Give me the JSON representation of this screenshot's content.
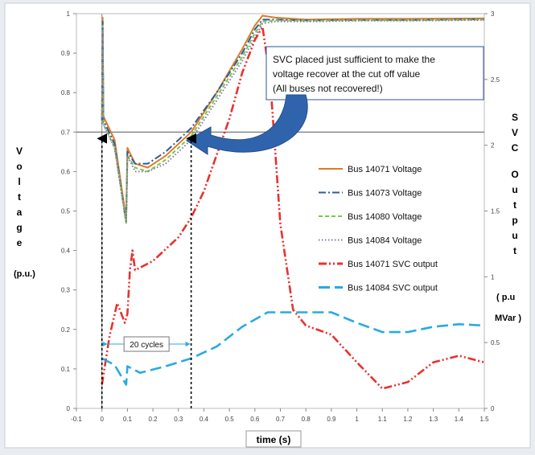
{
  "chart_data": {
    "type": "line",
    "xlabel": "time (s)",
    "ylabel_left": "Voltage",
    "ylabel_left_unit": "(p.u.)",
    "ylabel_right": "SVC Output",
    "ylabel_right_unit_1": "( p.u",
    "ylabel_right_unit_2": "MVar )",
    "xlim": [
      -0.1,
      1.5
    ],
    "ylim_left": [
      0,
      1
    ],
    "ylim_right": [
      0,
      3
    ],
    "x_ticks": [
      "-0.1",
      "0",
      "0.1",
      "0.2",
      "0.3",
      "0.4",
      "0.5",
      "0.6",
      "0.7",
      "0.8",
      "0.9",
      "1",
      "1.1",
      "1.2",
      "1.3",
      "1.4",
      "1.5"
    ],
    "y_ticks_left": [
      "0",
      "0.1",
      "0.2",
      "0.3",
      "0.4",
      "0.5",
      "0.6",
      "0.7",
      "0.8",
      "0.9",
      "1"
    ],
    "y_ticks_right": [
      "0",
      "0.5",
      "1",
      "1.5",
      "2",
      "2.5",
      "3"
    ],
    "reference_line_y": 0.7,
    "annotation_text": "SVC placed just sufficient to make the voltage recover at the cut off value (All buses not recovered!)",
    "interval_label": "20 cycles",
    "interval_x": [
      0,
      0.35
    ],
    "series": [
      {
        "name": "Bus 14071 Voltage",
        "axis": "left",
        "color": "#e07b25",
        "style": "solid",
        "points": [
          [
            0,
            0.73
          ],
          [
            0.003,
            0.99
          ],
          [
            0.006,
            0.74
          ],
          [
            0.05,
            0.68
          ],
          [
            0.095,
            0.48
          ],
          [
            0.1,
            0.66
          ],
          [
            0.13,
            0.62
          ],
          [
            0.18,
            0.61
          ],
          [
            0.25,
            0.64
          ],
          [
            0.35,
            0.7
          ],
          [
            0.45,
            0.8
          ],
          [
            0.55,
            0.91
          ],
          [
            0.6,
            0.97
          ],
          [
            0.63,
            0.995
          ],
          [
            0.68,
            0.99
          ],
          [
            0.8,
            0.985
          ],
          [
            1.0,
            0.987
          ],
          [
            1.2,
            0.987
          ],
          [
            1.5,
            0.988
          ]
        ]
      },
      {
        "name": "Bus 14073 Voltage",
        "axis": "left",
        "color": "#2f5aa0",
        "style": "dashdot",
        "points": [
          [
            0,
            0.73
          ],
          [
            0.003,
            0.98
          ],
          [
            0.006,
            0.73
          ],
          [
            0.05,
            0.67
          ],
          [
            0.095,
            0.47
          ],
          [
            0.1,
            0.65
          ],
          [
            0.13,
            0.62
          ],
          [
            0.18,
            0.62
          ],
          [
            0.25,
            0.65
          ],
          [
            0.35,
            0.71
          ],
          [
            0.45,
            0.8
          ],
          [
            0.55,
            0.9
          ],
          [
            0.6,
            0.96
          ],
          [
            0.63,
            0.985
          ],
          [
            0.68,
            0.985
          ],
          [
            0.8,
            0.983
          ],
          [
            1.0,
            0.984
          ],
          [
            1.2,
            0.984
          ],
          [
            1.5,
            0.986
          ]
        ]
      },
      {
        "name": "Bus 14080 Voltage",
        "axis": "left",
        "color": "#7ac943",
        "style": "dashed",
        "points": [
          [
            0,
            0.72
          ],
          [
            0.003,
            0.97
          ],
          [
            0.006,
            0.72
          ],
          [
            0.05,
            0.66
          ],
          [
            0.095,
            0.47
          ],
          [
            0.1,
            0.64
          ],
          [
            0.13,
            0.61
          ],
          [
            0.18,
            0.6
          ],
          [
            0.25,
            0.63
          ],
          [
            0.35,
            0.69
          ],
          [
            0.45,
            0.79
          ],
          [
            0.55,
            0.89
          ],
          [
            0.6,
            0.95
          ],
          [
            0.63,
            0.98
          ],
          [
            0.68,
            0.983
          ],
          [
            0.8,
            0.982
          ],
          [
            1.0,
            0.983
          ],
          [
            1.2,
            0.983
          ],
          [
            1.5,
            0.985
          ]
        ]
      },
      {
        "name": "Bus 14084 Voltage",
        "axis": "left",
        "color": "#8a72b6",
        "style": "dotted",
        "points": [
          [
            0,
            0.72
          ],
          [
            0.003,
            0.96
          ],
          [
            0.006,
            0.72
          ],
          [
            0.05,
            0.66
          ],
          [
            0.095,
            0.47
          ],
          [
            0.1,
            0.64
          ],
          [
            0.13,
            0.6
          ],
          [
            0.18,
            0.6
          ],
          [
            0.25,
            0.62
          ],
          [
            0.35,
            0.68
          ],
          [
            0.45,
            0.78
          ],
          [
            0.55,
            0.88
          ],
          [
            0.6,
            0.94
          ],
          [
            0.63,
            0.975
          ],
          [
            0.68,
            0.98
          ],
          [
            0.8,
            0.98
          ],
          [
            1.0,
            0.982
          ],
          [
            1.2,
            0.982
          ],
          [
            1.5,
            0.984
          ]
        ]
      },
      {
        "name": "Bus 14071 SVC output",
        "axis": "right",
        "color": "#e8312f",
        "style": "dashdotdot",
        "points": [
          [
            0,
            0.18
          ],
          [
            0.03,
            0.55
          ],
          [
            0.06,
            0.8
          ],
          [
            0.09,
            0.65
          ],
          [
            0.1,
            0.72
          ],
          [
            0.11,
            1.05
          ],
          [
            0.12,
            1.2
          ],
          [
            0.13,
            1.05
          ],
          [
            0.2,
            1.12
          ],
          [
            0.3,
            1.3
          ],
          [
            0.35,
            1.45
          ],
          [
            0.4,
            1.65
          ],
          [
            0.5,
            2.2
          ],
          [
            0.55,
            2.55
          ],
          [
            0.6,
            2.8
          ],
          [
            0.63,
            2.9
          ],
          [
            0.66,
            2.5
          ],
          [
            0.7,
            1.4
          ],
          [
            0.75,
            0.75
          ],
          [
            0.8,
            0.63
          ],
          [
            0.9,
            0.56
          ],
          [
            1.0,
            0.35
          ],
          [
            1.1,
            0.15
          ],
          [
            1.2,
            0.2
          ],
          [
            1.3,
            0.35
          ],
          [
            1.4,
            0.4
          ],
          [
            1.5,
            0.35
          ]
        ]
      },
      {
        "name": "Bus 14084 SVC output",
        "axis": "right",
        "color": "#29aae1",
        "style": "longdash",
        "points": [
          [
            0,
            0.38
          ],
          [
            0.05,
            0.33
          ],
          [
            0.095,
            0.18
          ],
          [
            0.1,
            0.32
          ],
          [
            0.15,
            0.27
          ],
          [
            0.25,
            0.32
          ],
          [
            0.35,
            0.38
          ],
          [
            0.45,
            0.47
          ],
          [
            0.55,
            0.62
          ],
          [
            0.65,
            0.73
          ],
          [
            0.8,
            0.73
          ],
          [
            0.9,
            0.73
          ],
          [
            1.0,
            0.65
          ],
          [
            1.1,
            0.58
          ],
          [
            1.2,
            0.58
          ],
          [
            1.3,
            0.62
          ],
          [
            1.4,
            0.64
          ],
          [
            1.5,
            0.63
          ]
        ]
      }
    ]
  }
}
